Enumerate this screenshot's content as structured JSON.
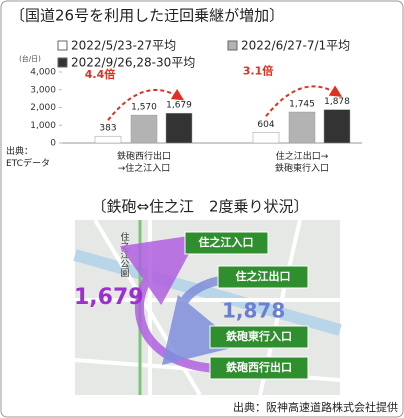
{
  "chart_data": {
    "type": "bar",
    "title": "〔国道26号を利用した迂回乗継が増加〕",
    "y_label": "(台/日)",
    "source": "出典：\nETCデータ",
    "categories": [
      "鉄砲西行出口\n→住之江入口",
      "住之江出口→\n鉄砲東行入口"
    ],
    "series": [
      {
        "name": "2022/5/23-27平均",
        "color": "#ffffff",
        "values": [
          383,
          604
        ],
        "value_labels": [
          "383",
          "604"
        ]
      },
      {
        "name": "2022/6/27-7/1平均",
        "color": "#b3b3b3",
        "values": [
          1570,
          1745
        ],
        "value_labels": [
          "1,570",
          "1,745"
        ]
      },
      {
        "name": "2022/9/26,28-30平均",
        "color": "#333333",
        "values": [
          1679,
          1878
        ],
        "value_labels": [
          "1,679",
          "1,878"
        ]
      }
    ],
    "annotations": [
      "4.4倍",
      "3.1倍"
    ],
    "ylim": [
      0,
      4000
    ],
    "yticks": [
      0,
      {
        "value": 1000,
        "label": "1,000"
      },
      {
        "value": 2000,
        "label": "2,000"
      },
      {
        "value": 3000,
        "label": "3,000"
      },
      {
        "value": 4000,
        "label": "4,000"
      }
    ]
  },
  "map": {
    "title": "〔鉄砲⇔住之江　2度乗り状況〕",
    "place": "住之江公園",
    "nodes": [
      "住之江入口",
      "住之江出口",
      "鉄砲東行入口",
      "鉄砲西行出口"
    ],
    "flows": [
      "1,679",
      "1,878"
    ],
    "source": "出典：阪神高速道路株式会社提供"
  }
}
